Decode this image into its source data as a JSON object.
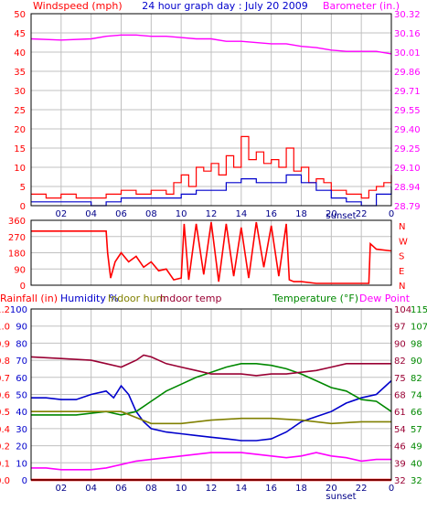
{
  "title": "24 hour graph day : July 20 2009",
  "colors": {
    "background": "#ffffff",
    "grid": "#c0c0c0",
    "frame": "#000000",
    "red": "#ff0000",
    "blue": "#0000cc",
    "magenta": "#ff00ff",
    "dark_red": "#990033",
    "green": "#008800",
    "olive": "#808000"
  },
  "chart_data": [
    {
      "type": "line",
      "panel": "wind_barometer",
      "title": "24 hour graph day : July 20 2009",
      "left_axis_label": "Windspeed (mph)",
      "right_axis_label": "Barometer (in.)",
      "x_tick_labels": [
        "02",
        "04",
        "06",
        "08",
        "10",
        "12",
        "14",
        "16",
        "18",
        "20",
        "22",
        "0"
      ],
      "x_annotation": "sunset",
      "left_ticks": [
        0,
        5,
        10,
        15,
        20,
        25,
        30,
        35,
        40,
        45,
        50
      ],
      "right_ticks": [
        "28.79",
        "28.94",
        "29.10",
        "29.25",
        "29.40",
        "29.55",
        "29.71",
        "29.86",
        "30.01",
        "30.16",
        "30.32"
      ],
      "xlim": [
        0,
        24
      ],
      "ylim": [
        0,
        50
      ],
      "series": [
        {
          "key": "gust",
          "color": "#ff0000",
          "x": [
            0.0,
            1.0,
            2.0,
            3.0,
            4.0,
            5.0,
            6.0,
            7.0,
            8.0,
            9.0,
            9.5,
            10.0,
            10.5,
            11.0,
            11.5,
            12.0,
            12.5,
            13.0,
            13.5,
            14.0,
            14.5,
            15.0,
            15.5,
            16.0,
            16.5,
            17.0,
            17.5,
            18.0,
            18.5,
            19.0,
            19.5,
            20.0,
            21.0,
            22.0,
            22.5,
            23.0,
            23.5,
            24.0
          ],
          "y": [
            3,
            2,
            3,
            2,
            2,
            3,
            4,
            3,
            4,
            3,
            6,
            8,
            5,
            10,
            9,
            11,
            8,
            13,
            10,
            18,
            12,
            14,
            11,
            12,
            10,
            15,
            9,
            10,
            6,
            7,
            6,
            4,
            3,
            2,
            4,
            5,
            6,
            8
          ]
        },
        {
          "key": "wind",
          "color": "#0000cc",
          "x": [
            0.0,
            1.0,
            2.0,
            3.0,
            4.0,
            5.0,
            6.0,
            7.0,
            8.0,
            9.0,
            10.0,
            11.0,
            12.0,
            13.0,
            14.0,
            15.0,
            16.0,
            17.0,
            18.0,
            19.0,
            20.0,
            21.0,
            22.0,
            23.0,
            24.0
          ],
          "y": [
            1,
            1,
            1,
            1,
            0,
            1,
            2,
            2,
            2,
            2,
            3,
            4,
            4,
            6,
            7,
            6,
            6,
            8,
            6,
            4,
            2,
            1,
            0,
            3,
            5
          ]
        },
        {
          "key": "barometer",
          "color": "#ff00ff",
          "axis": "right",
          "x": [
            0,
            2,
            4,
            5,
            6,
            7,
            8,
            9,
            10,
            11,
            12,
            13,
            14,
            15,
            16,
            17,
            18,
            19,
            20,
            21,
            22,
            23,
            24
          ],
          "y": [
            30.12,
            30.11,
            30.12,
            30.14,
            30.15,
            30.15,
            30.14,
            30.14,
            30.13,
            30.12,
            30.12,
            30.1,
            30.1,
            30.09,
            30.08,
            30.08,
            30.06,
            30.05,
            30.03,
            30.02,
            30.02,
            30.02,
            30.0
          ]
        }
      ]
    },
    {
      "type": "line",
      "panel": "wind_direction",
      "left_ticks": [
        0,
        90,
        180,
        270,
        360
      ],
      "right_labels": [
        "N",
        "W",
        "S",
        "E",
        "N"
      ],
      "xlim": [
        0,
        24
      ],
      "ylim": [
        0,
        360
      ],
      "series": [
        {
          "key": "direction",
          "color": "#ff0000",
          "x": [
            0,
            2,
            4,
            5.0,
            5.1,
            5.3,
            5.6,
            6.0,
            6.5,
            7.0,
            7.5,
            8.0,
            8.5,
            9.0,
            9.5,
            10.0,
            10.2,
            10.5,
            11.0,
            11.5,
            12.0,
            12.5,
            13.0,
            13.5,
            14.0,
            14.5,
            15.0,
            15.5,
            16.0,
            16.5,
            17.0,
            17.2,
            17.5,
            18.0,
            19.0,
            20.0,
            21.0,
            22.0,
            22.5,
            22.6,
            23.0,
            24.0
          ],
          "y": [
            300,
            300,
            300,
            300,
            180,
            40,
            130,
            180,
            130,
            160,
            100,
            130,
            80,
            90,
            30,
            40,
            340,
            30,
            340,
            60,
            350,
            20,
            340,
            50,
            320,
            40,
            350,
            100,
            330,
            50,
            340,
            30,
            20,
            20,
            10,
            10,
            10,
            10,
            10,
            230,
            200,
            190
          ]
        }
      ]
    },
    {
      "type": "line",
      "panel": "temp_humidity",
      "left_axis_label": "Rainfall (in)",
      "humidity_label": "Humidity %",
      "indoor_hum_label": "Indoor hum",
      "indoor_temp_label": "Indoor temp",
      "right_axis_label": "Temperature (°F)",
      "dew_label": "Dew Point",
      "x_tick_labels": [
        "02",
        "04",
        "06",
        "08",
        "10",
        "12",
        "14",
        "16",
        "18",
        "20",
        "22",
        "0"
      ],
      "x_annotation": "sunset",
      "rain_ticks": [
        "0.0",
        "0.1",
        "0.2",
        "0.4",
        "0.5",
        "0.6",
        "0.7",
        "0.8",
        "0.9",
        "1.0",
        "1.2"
      ],
      "humidity_ticks": [
        0,
        10,
        20,
        30,
        40,
        50,
        60,
        70,
        80,
        90,
        100
      ],
      "temp_ticks_a": [
        32,
        39,
        46,
        54,
        61,
        68,
        75,
        82,
        90,
        97,
        104
      ],
      "temp_ticks_b": [
        32,
        40,
        49,
        57,
        66,
        74,
        82,
        90,
        98,
        107,
        115
      ],
      "xlim": [
        0,
        24
      ],
      "ylim": [
        0,
        100
      ],
      "series": [
        {
          "key": "humidity",
          "color": "#0000cc",
          "x": [
            0,
            1,
            2,
            3,
            4,
            5,
            5.5,
            6,
            6.5,
            7,
            7.5,
            8,
            9,
            10,
            11,
            12,
            13,
            14,
            15,
            16,
            17,
            18,
            19,
            20,
            21,
            22,
            23,
            24
          ],
          "y": [
            48,
            48,
            47,
            47,
            50,
            52,
            48,
            55,
            50,
            40,
            34,
            30,
            28,
            27,
            26,
            25,
            24,
            23,
            23,
            24,
            28,
            34,
            37,
            40,
            45,
            48,
            50,
            58
          ]
        },
        {
          "key": "temperature",
          "color": "#008800",
          "x": [
            0,
            1,
            2,
            3,
            4,
            5,
            6,
            7,
            8,
            9,
            10,
            11,
            12,
            13,
            14,
            15,
            16,
            17,
            18,
            19,
            20,
            21,
            22,
            23,
            24
          ],
          "y": [
            38,
            38,
            38,
            38,
            39,
            40,
            38,
            40,
            46,
            52,
            56,
            60,
            63,
            66,
            68,
            68,
            67,
            65,
            62,
            58,
            54,
            52,
            47,
            46,
            40
          ]
        },
        {
          "key": "indoor_temp",
          "color": "#990033",
          "x": [
            0,
            2,
            4,
            5,
            6,
            7,
            7.5,
            8,
            9,
            10,
            11,
            12,
            13,
            14,
            15,
            16,
            17,
            18,
            19,
            20,
            21,
            22,
            24
          ],
          "y": [
            72,
            71,
            70,
            68,
            66,
            70,
            73,
            72,
            68,
            66,
            64,
            62,
            62,
            62,
            61,
            62,
            62,
            63,
            64,
            66,
            68,
            68,
            68
          ]
        },
        {
          "key": "indoor_hum",
          "color": "#808000",
          "x": [
            0,
            2,
            4,
            6,
            8,
            10,
            12,
            14,
            16,
            18,
            20,
            22,
            24
          ],
          "y": [
            40,
            40,
            40,
            40,
            33,
            33,
            35,
            36,
            36,
            35,
            33,
            34,
            34
          ]
        },
        {
          "key": "dew_point",
          "color": "#ff00ff",
          "x": [
            0,
            1,
            2,
            3,
            4,
            5,
            6,
            7,
            8,
            9,
            10,
            11,
            12,
            13,
            14,
            15,
            16,
            17,
            18,
            19,
            20,
            21,
            22,
            23,
            24
          ],
          "y": [
            7,
            7,
            6,
            6,
            6,
            7,
            9,
            11,
            12,
            13,
            14,
            15,
            16,
            16,
            16,
            15,
            14,
            13,
            14,
            16,
            14,
            13,
            11,
            12,
            12
          ]
        },
        {
          "key": "rainfall",
          "color": "#ff0000",
          "x": [
            0,
            24
          ],
          "y": [
            0,
            0
          ]
        }
      ]
    }
  ]
}
